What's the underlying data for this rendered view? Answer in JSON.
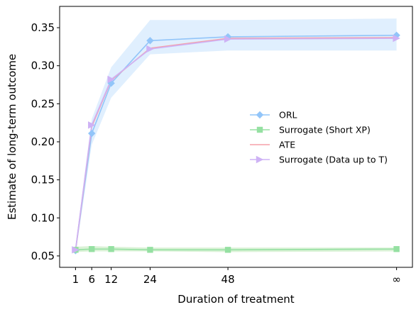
{
  "chart_data": {
    "type": "line",
    "xlabel": "Duration of treatment",
    "ylabel": "Estimate of long-term outcome",
    "x": [
      1,
      6,
      12,
      24,
      48,
      100
    ],
    "x_tick_labels": [
      "1",
      "6",
      "12",
      "24",
      "48",
      "∞"
    ],
    "xlim": [
      -3.9,
      104.9
    ],
    "ylim": [
      0.035,
      0.378
    ],
    "y_ticks": [
      0.05,
      0.1,
      0.15,
      0.2,
      0.25,
      0.3,
      0.35
    ],
    "y_tick_labels": [
      "0.05",
      "0.10",
      "0.15",
      "0.20",
      "0.25",
      "0.30",
      "0.35"
    ],
    "grid": false,
    "legend_position": "center-right",
    "series": [
      {
        "name": "ORL",
        "values": [
          0.057,
          0.211,
          0.277,
          0.333,
          0.338,
          0.34
        ],
        "band_low": [
          0.052,
          0.196,
          0.258,
          0.315,
          0.32,
          0.32
        ],
        "band_high": [
          0.063,
          0.23,
          0.298,
          0.36,
          0.36,
          0.362
        ],
        "color": "#92c5f9",
        "band_color": "#d6e9fd",
        "marker": "diamond"
      },
      {
        "name": "Surrogate (Short XP)",
        "values": [
          0.058,
          0.059,
          0.059,
          0.058,
          0.058,
          0.059
        ],
        "band_low": [
          0.055,
          0.056,
          0.056,
          0.056,
          0.055,
          0.056
        ],
        "band_high": [
          0.062,
          0.063,
          0.062,
          0.061,
          0.061,
          0.061
        ],
        "color": "#95e0a2",
        "band_color": "#cdeec8",
        "marker": "square"
      },
      {
        "name": "ATE",
        "values": [
          0.057,
          0.22,
          0.281,
          0.323,
          0.336,
          0.337
        ],
        "color": "#f5a1a8",
        "marker": "none"
      },
      {
        "name": "Surrogate (Data up to T)",
        "values": [
          0.058,
          0.222,
          0.282,
          0.322,
          0.335,
          0.336
        ],
        "color": "#ceb2f5",
        "marker": "triangle-right"
      }
    ]
  }
}
